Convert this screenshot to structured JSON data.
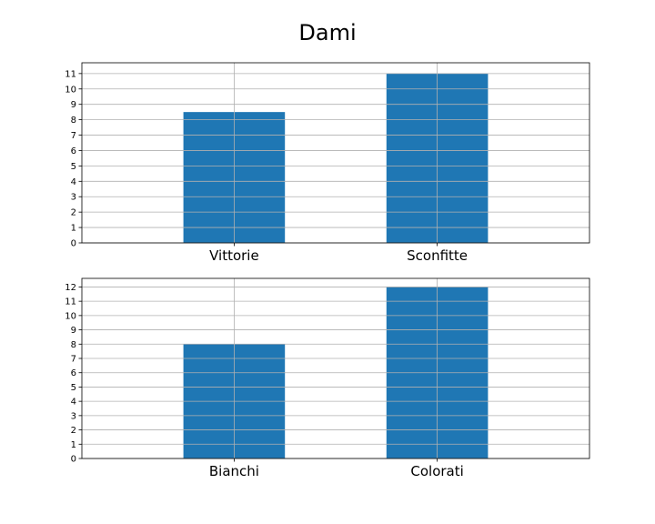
{
  "figure": {
    "title": "Dami"
  },
  "chart_data": [
    {
      "type": "bar",
      "title": "",
      "xlabel": "",
      "ylabel": "",
      "categories": [
        "Vittorie",
        "Sconfitte"
      ],
      "values": [
        8.5,
        11
      ],
      "ylim": [
        0,
        11.7
      ],
      "yticks": [
        0,
        1,
        2,
        3,
        4,
        5,
        6,
        7,
        8,
        9,
        10,
        11
      ],
      "grid": true,
      "color": "#1f77b4"
    },
    {
      "type": "bar",
      "title": "",
      "xlabel": "",
      "ylabel": "",
      "categories": [
        "Bianchi",
        "Colorati"
      ],
      "values": [
        8,
        12
      ],
      "ylim": [
        0,
        12.6
      ],
      "yticks": [
        0,
        1,
        2,
        3,
        4,
        5,
        6,
        7,
        8,
        9,
        10,
        11,
        12
      ],
      "grid": true,
      "color": "#1f77b4"
    }
  ]
}
